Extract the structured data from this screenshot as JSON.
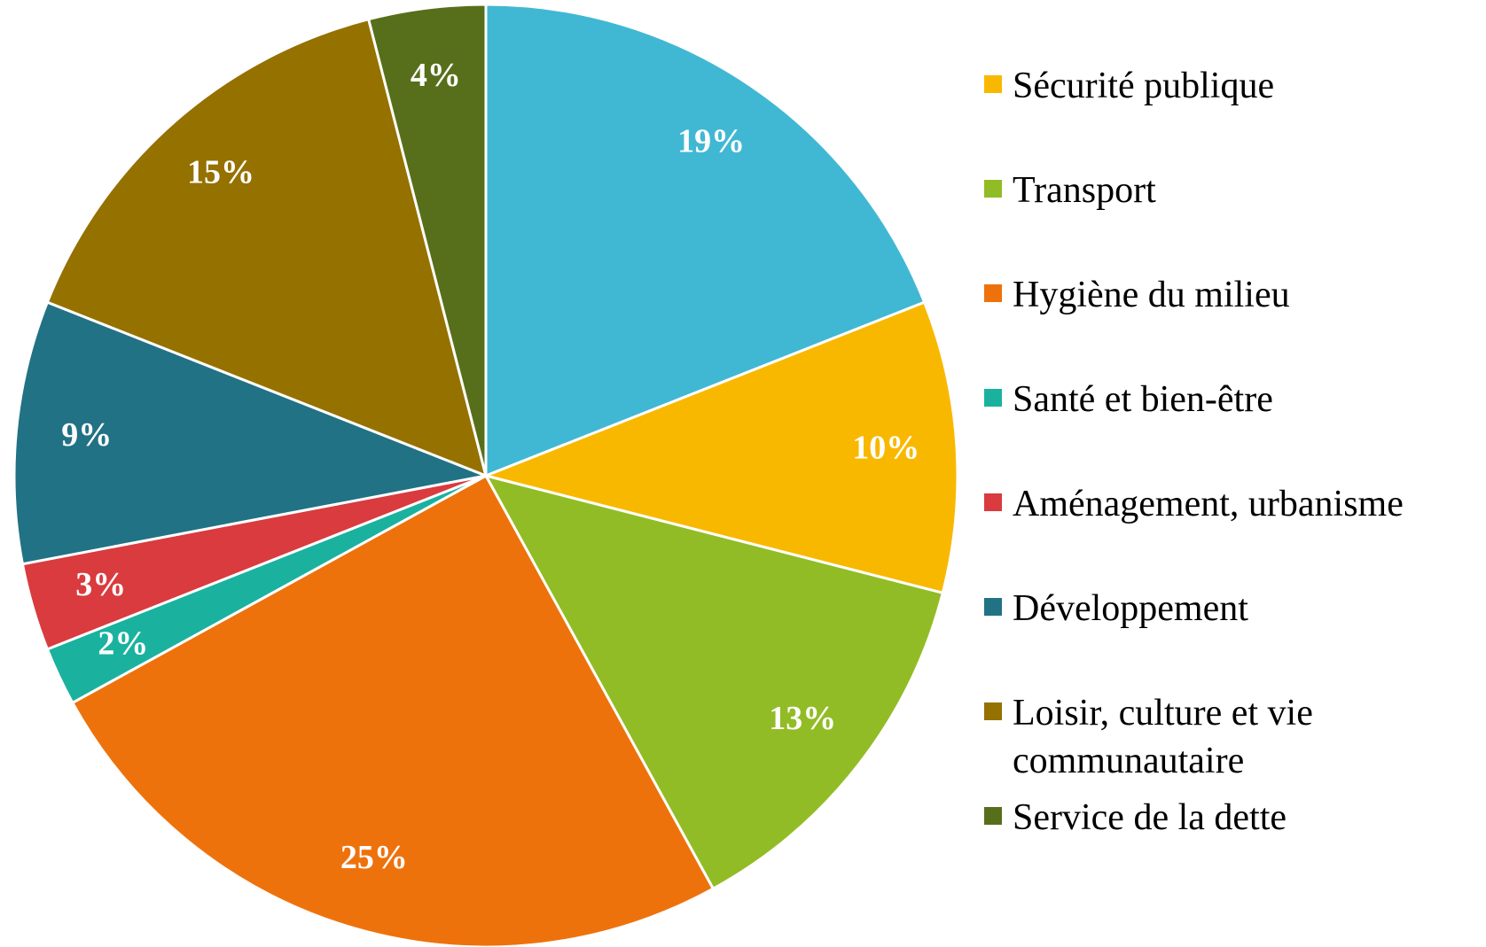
{
  "chart_data": {
    "type": "pie",
    "categories": [
      null,
      "Sécurité publique",
      "Transport",
      "Hygiène du milieu",
      "Santé et bien-être",
      "Aménagement, urbanisme",
      "Développement",
      "Loisir, culture et vie communautaire",
      "Service de la dette"
    ],
    "values": [
      19,
      10,
      13,
      25,
      2,
      3,
      9,
      15,
      4
    ],
    "value_labels": [
      "19%",
      "10%",
      "13%",
      "25%",
      "2%",
      "3%",
      "9%",
      "15%",
      "4%"
    ],
    "colors": [
      "#41b8d3",
      "#f9b800",
      "#92bc25",
      "#ee720c",
      "#1ab29e",
      "#d93b3e",
      "#217284",
      "#957100",
      "#576f1a"
    ],
    "legend": "right"
  }
}
